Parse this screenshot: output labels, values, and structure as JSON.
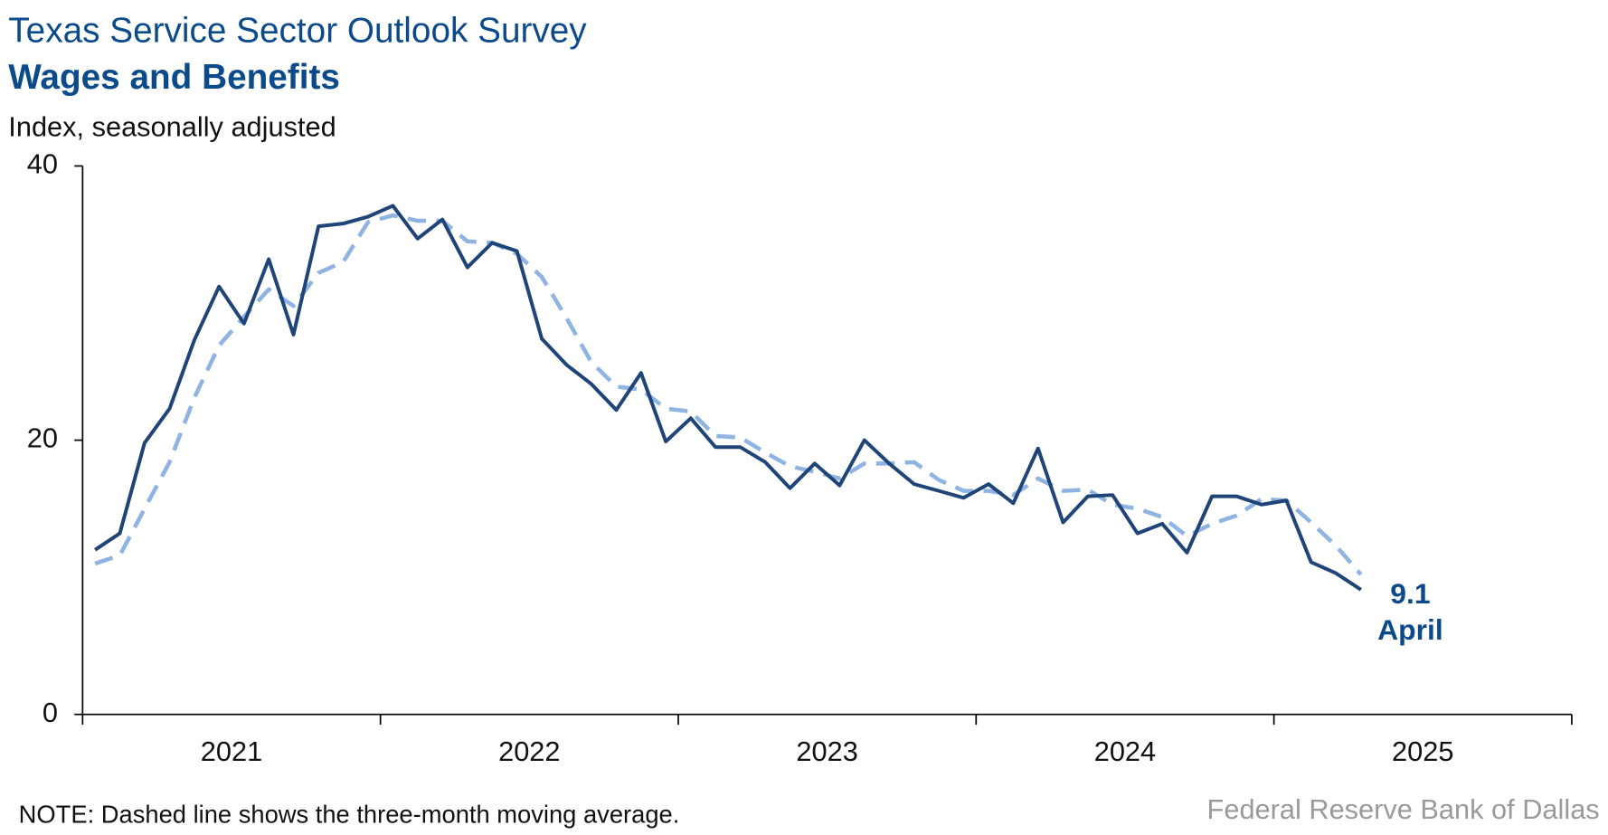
{
  "chart_data": {
    "type": "line",
    "title": "Texas Service Sector Outlook Survey",
    "subtitle": "Wages and Benefits",
    "y_label": "Index, seasonally adjusted",
    "note": "NOTE: Dashed line shows the three-month moving average.",
    "source": "Federal Reserve Bank of Dallas",
    "annotation": "April",
    "x": [
      2021.042,
      2021.125,
      2021.208,
      2021.292,
      2021.375,
      2021.458,
      2021.542,
      2021.625,
      2021.708,
      2021.792,
      2021.875,
      2021.958,
      2022.042,
      2022.125,
      2022.208,
      2022.292,
      2022.375,
      2022.458,
      2022.542,
      2022.625,
      2022.708,
      2022.792,
      2022.875,
      2022.958,
      2023.042,
      2023.125,
      2023.208,
      2023.292,
      2023.375,
      2023.458,
      2023.542,
      2023.625,
      2023.708,
      2023.792,
      2023.875,
      2023.958,
      2024.042,
      2024.125,
      2024.208,
      2024.292,
      2024.375,
      2024.458,
      2024.542,
      2024.625,
      2024.708,
      2024.792,
      2024.875,
      2024.958,
      2025.042,
      2025.125,
      2025.208,
      2025.292
    ],
    "series": [
      {
        "style": "solid",
        "color": "#1f4478",
        "values": [
          12.0,
          13.2,
          19.8,
          22.3,
          27.3,
          31.2,
          28.5,
          33.2,
          27.7,
          35.6,
          35.8,
          36.3,
          37.1,
          34.7,
          36.1,
          32.6,
          34.4,
          33.8,
          27.4,
          25.5,
          24.1,
          22.2,
          24.9,
          19.9,
          21.6,
          19.5,
          19.5,
          18.4,
          16.5,
          18.3,
          16.7,
          20.0,
          18.3,
          16.8,
          16.3,
          15.8,
          16.8,
          15.4,
          19.4,
          14.0,
          15.9,
          16.0,
          13.2,
          13.9,
          11.8,
          15.9,
          15.9,
          15.3,
          15.6,
          11.1,
          10.3,
          9.1
        ]
      },
      {
        "style": "dashed",
        "color": "#8fb4e3",
        "values": [
          11.0,
          11.6,
          15.0,
          18.4,
          23.1,
          26.9,
          29.0,
          31.0,
          29.8,
          32.2,
          33.0,
          35.9,
          36.4,
          36.0,
          36.0,
          34.5,
          34.4,
          33.6,
          31.9,
          28.9,
          25.7,
          23.9,
          23.7,
          22.3,
          22.1,
          20.3,
          20.2,
          19.1,
          18.1,
          17.7,
          17.2,
          18.3,
          18.3,
          18.4,
          17.1,
          16.3,
          16.3,
          16.0,
          17.2,
          16.3,
          16.4,
          15.3,
          15.0,
          14.4,
          13.0,
          13.9,
          14.5,
          15.7,
          15.6,
          14.0,
          12.3,
          10.2
        ]
      }
    ],
    "xlim": [
      2021,
      2026
    ],
    "xticks": [
      2021,
      2022,
      2023,
      2024,
      2025,
      2026
    ],
    "year_labels": [
      "2021",
      "2022",
      "2023",
      "2024",
      "2025"
    ],
    "ylim": [
      0,
      40
    ],
    "yticks": [
      0,
      20,
      40
    ],
    "grid": false
  }
}
